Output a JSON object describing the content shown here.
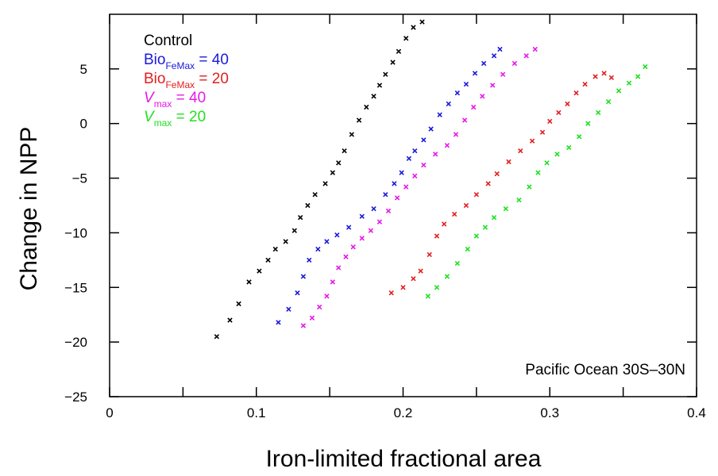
{
  "chart_data": {
    "type": "scatter",
    "xlabel": "Iron-limited fractional area",
    "ylabel": "Change in NPP",
    "annotation": "Pacific Ocean 30S–30N",
    "xlim": [
      0,
      0.4
    ],
    "ylim": [
      -25,
      10
    ],
    "xticks": [
      0,
      0.05,
      0.1,
      0.15,
      0.2,
      0.25,
      0.3,
      0.35,
      0.4
    ],
    "xtick_labels": [
      "0",
      "",
      "0.1",
      "",
      "0.2",
      "",
      "0.3",
      "",
      "0.4"
    ],
    "yticks": [
      -25,
      -20,
      -15,
      -10,
      -5,
      0,
      5
    ],
    "ytick_labels": [
      "−25",
      "−20",
      "−15",
      "−10",
      "−5",
      "0",
      "5"
    ],
    "grid": false,
    "legend_position": "top-left",
    "marker": "x",
    "series": [
      {
        "name": "Control",
        "legend_main": "Control",
        "legend_sub": "",
        "legend_rest": "",
        "italic": false,
        "color": "#000000",
        "points": [
          [
            0.073,
            -19.5
          ],
          [
            0.082,
            -18.0
          ],
          [
            0.088,
            -16.5
          ],
          [
            0.095,
            -14.5
          ],
          [
            0.102,
            -13.5
          ],
          [
            0.108,
            -12.5
          ],
          [
            0.113,
            -11.5
          ],
          [
            0.12,
            -10.8
          ],
          [
            0.126,
            -9.8
          ],
          [
            0.13,
            -8.6
          ],
          [
            0.135,
            -7.5
          ],
          [
            0.14,
            -6.5
          ],
          [
            0.147,
            -5.5
          ],
          [
            0.152,
            -4.5
          ],
          [
            0.156,
            -3.6
          ],
          [
            0.16,
            -2.5
          ],
          [
            0.165,
            -1.0
          ],
          [
            0.17,
            0.3
          ],
          [
            0.175,
            1.5
          ],
          [
            0.18,
            2.5
          ],
          [
            0.184,
            3.5
          ],
          [
            0.188,
            4.5
          ],
          [
            0.193,
            5.6
          ],
          [
            0.197,
            6.6
          ],
          [
            0.202,
            7.8
          ],
          [
            0.207,
            8.8
          ],
          [
            0.213,
            9.3
          ]
        ]
      },
      {
        "name": "BioFeMax = 40",
        "legend_main": "Bio",
        "legend_sub": "FeMax",
        "legend_rest": " = 40",
        "italic": false,
        "color": "#1a1adb",
        "points": [
          [
            0.115,
            -18.2
          ],
          [
            0.122,
            -17.0
          ],
          [
            0.128,
            -15.5
          ],
          [
            0.132,
            -14.0
          ],
          [
            0.136,
            -12.5
          ],
          [
            0.142,
            -11.5
          ],
          [
            0.148,
            -10.8
          ],
          [
            0.155,
            -10.2
          ],
          [
            0.163,
            -9.5
          ],
          [
            0.172,
            -8.5
          ],
          [
            0.18,
            -7.8
          ],
          [
            0.188,
            -6.5
          ],
          [
            0.194,
            -5.5
          ],
          [
            0.199,
            -4.5
          ],
          [
            0.204,
            -3.2
          ],
          [
            0.208,
            -2.5
          ],
          [
            0.214,
            -1.5
          ],
          [
            0.219,
            -0.5
          ],
          [
            0.225,
            0.8
          ],
          [
            0.231,
            1.8
          ],
          [
            0.237,
            2.8
          ],
          [
            0.243,
            3.6
          ],
          [
            0.249,
            4.6
          ],
          [
            0.255,
            5.5
          ],
          [
            0.262,
            6.2
          ],
          [
            0.266,
            6.8
          ]
        ]
      },
      {
        "name": "BioFeMax = 20",
        "legend_main": "Bio",
        "legend_sub": "FeMax",
        "legend_rest": " = 20",
        "italic": false,
        "color": "#e31e1e",
        "points": [
          [
            0.192,
            -15.5
          ],
          [
            0.2,
            -15.0
          ],
          [
            0.207,
            -14.2
          ],
          [
            0.212,
            -13.5
          ],
          [
            0.218,
            -12.0
          ],
          [
            0.223,
            -10.3
          ],
          [
            0.228,
            -9.2
          ],
          [
            0.235,
            -8.3
          ],
          [
            0.243,
            -7.5
          ],
          [
            0.25,
            -6.5
          ],
          [
            0.258,
            -5.5
          ],
          [
            0.264,
            -4.6
          ],
          [
            0.272,
            -3.5
          ],
          [
            0.28,
            -2.5
          ],
          [
            0.288,
            -1.6
          ],
          [
            0.295,
            -0.8
          ],
          [
            0.3,
            0.2
          ],
          [
            0.306,
            1.0
          ],
          [
            0.312,
            1.8
          ],
          [
            0.318,
            2.8
          ],
          [
            0.324,
            3.6
          ],
          [
            0.331,
            4.3
          ],
          [
            0.337,
            4.6
          ],
          [
            0.342,
            4.2
          ]
        ]
      },
      {
        "name": "Vmax = 40",
        "legend_main": "V",
        "legend_sub": "max",
        "legend_rest": " = 40",
        "italic": true,
        "color": "#e619e6",
        "points": [
          [
            0.132,
            -18.5
          ],
          [
            0.138,
            -17.8
          ],
          [
            0.143,
            -16.8
          ],
          [
            0.148,
            -15.8
          ],
          [
            0.152,
            -14.5
          ],
          [
            0.156,
            -13.2
          ],
          [
            0.161,
            -12.2
          ],
          [
            0.166,
            -11.3
          ],
          [
            0.172,
            -10.5
          ],
          [
            0.178,
            -9.8
          ],
          [
            0.184,
            -9.0
          ],
          [
            0.19,
            -8.0
          ],
          [
            0.196,
            -6.8
          ],
          [
            0.202,
            -5.8
          ],
          [
            0.208,
            -4.8
          ],
          [
            0.214,
            -3.8
          ],
          [
            0.222,
            -2.8
          ],
          [
            0.23,
            -2.0
          ],
          [
            0.236,
            -1.0
          ],
          [
            0.242,
            0.3
          ],
          [
            0.248,
            1.5
          ],
          [
            0.254,
            2.5
          ],
          [
            0.261,
            3.5
          ],
          [
            0.268,
            4.5
          ],
          [
            0.276,
            5.5
          ],
          [
            0.284,
            6.2
          ],
          [
            0.29,
            6.8
          ]
        ]
      },
      {
        "name": "Vmax = 20",
        "legend_main": "V",
        "legend_sub": "max",
        "legend_rest": " = 20",
        "italic": true,
        "color": "#1fe11f",
        "points": [
          [
            0.217,
            -15.8
          ],
          [
            0.223,
            -15.0
          ],
          [
            0.23,
            -14.0
          ],
          [
            0.237,
            -12.8
          ],
          [
            0.244,
            -11.5
          ],
          [
            0.25,
            -10.3
          ],
          [
            0.256,
            -9.5
          ],
          [
            0.262,
            -8.6
          ],
          [
            0.27,
            -7.8
          ],
          [
            0.279,
            -7.0
          ],
          [
            0.286,
            -5.8
          ],
          [
            0.292,
            -4.5
          ],
          [
            0.298,
            -3.6
          ],
          [
            0.305,
            -2.8
          ],
          [
            0.313,
            -2.2
          ],
          [
            0.32,
            -1.2
          ],
          [
            0.326,
            0.0
          ],
          [
            0.333,
            1.0
          ],
          [
            0.34,
            2.0
          ],
          [
            0.347,
            3.0
          ],
          [
            0.354,
            3.7
          ],
          [
            0.36,
            4.3
          ],
          [
            0.365,
            5.2
          ]
        ]
      }
    ]
  }
}
